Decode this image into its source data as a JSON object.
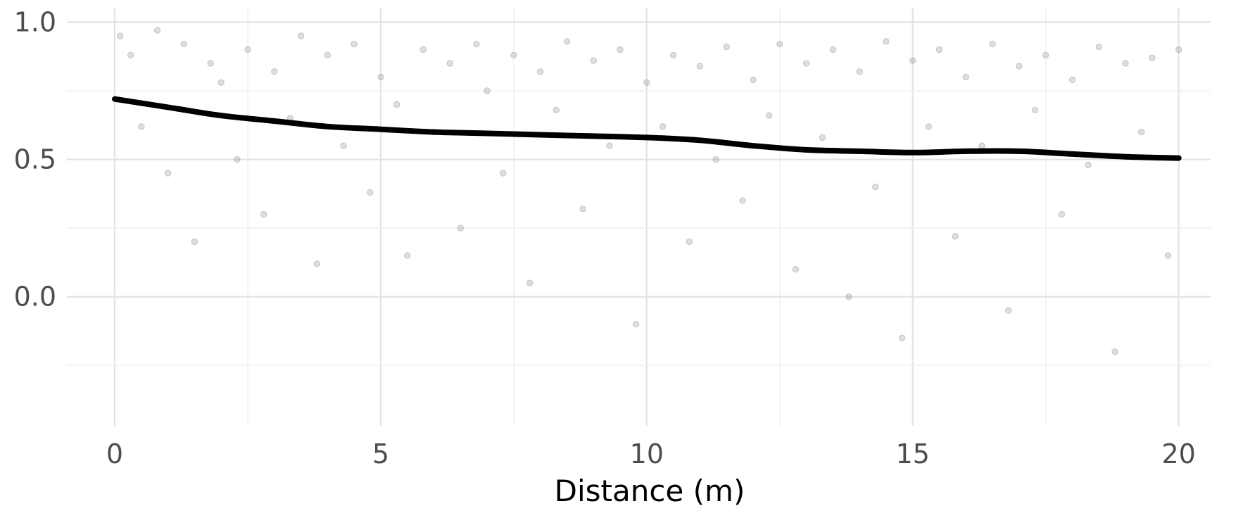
{
  "chart_data": {
    "type": "scatter",
    "title": "",
    "xlabel": "Distance (m)",
    "ylabel": "",
    "xlim": [
      -0.9,
      20.6
    ],
    "ylim": [
      -0.47,
      1.05
    ],
    "x_ticks": [
      0,
      5,
      10,
      15,
      20
    ],
    "x_tick_labels": [
      "0",
      "5",
      "10",
      "15",
      "20"
    ],
    "y_ticks": [
      0.0,
      0.5,
      1.0
    ],
    "y_tick_labels": [
      "0.0",
      "0.5",
      "1.0"
    ],
    "grid": true,
    "legend": "none",
    "point_color": "#7f7f7f",
    "line_color": "#000000",
    "series": [
      {
        "kind": "points",
        "x": [
          0.1,
          0.3,
          0.5,
          0.8,
          1.0,
          1.3,
          1.5,
          1.8,
          2.0,
          2.3,
          2.5,
          2.8,
          3.0,
          3.3,
          3.5,
          3.8,
          4.0,
          4.3,
          4.5,
          4.8,
          5.0,
          5.3,
          5.5,
          5.8,
          6.0,
          6.3,
          6.5,
          6.8,
          7.0,
          7.3,
          7.5,
          7.8,
          8.0,
          8.3,
          8.5,
          8.8,
          9.0,
          9.3,
          9.5,
          9.8,
          10.0,
          10.3,
          10.5,
          10.8,
          11.0,
          11.3,
          11.5,
          11.8,
          12.0,
          12.3,
          12.5,
          12.8,
          13.0,
          13.3,
          13.5,
          13.8,
          14.0,
          14.3,
          14.5,
          14.8,
          15.0,
          15.3,
          15.5,
          15.8,
          16.0,
          16.3,
          16.5,
          16.8,
          17.0,
          17.3,
          17.5,
          17.8,
          18.0,
          18.3,
          18.5,
          18.8,
          19.0,
          19.3,
          19.5,
          19.8,
          20.0
        ],
        "y": [
          0.95,
          0.88,
          0.62,
          0.97,
          0.45,
          0.92,
          0.2,
          0.85,
          0.78,
          0.5,
          0.9,
          0.3,
          0.82,
          0.65,
          0.95,
          0.12,
          0.88,
          0.55,
          0.92,
          0.38,
          0.8,
          0.7,
          0.15,
          0.9,
          0.6,
          0.85,
          0.25,
          0.92,
          0.75,
          0.45,
          0.88,
          0.05,
          0.82,
          0.68,
          0.93,
          0.32,
          0.86,
          0.55,
          0.9,
          -0.1,
          0.78,
          0.62,
          0.88,
          0.2,
          0.84,
          0.5,
          0.91,
          0.35,
          0.79,
          0.66,
          0.92,
          0.1,
          0.85,
          0.58,
          0.9,
          0.0,
          0.82,
          0.4,
          0.93,
          -0.15,
          0.86,
          0.62,
          0.9,
          0.22,
          0.8,
          0.55,
          0.92,
          -0.05,
          0.84,
          0.68,
          0.88,
          0.3,
          0.79,
          0.48,
          0.91,
          -0.2,
          0.85,
          0.6,
          0.87,
          0.15,
          0.9
        ]
      },
      {
        "kind": "smooth",
        "x": [
          0,
          1,
          2,
          3,
          4,
          5,
          6,
          7,
          8,
          9,
          10,
          11,
          12,
          13,
          14,
          15,
          16,
          17,
          18,
          19,
          20
        ],
        "y": [
          0.72,
          0.69,
          0.66,
          0.64,
          0.62,
          0.61,
          0.6,
          0.595,
          0.59,
          0.585,
          0.58,
          0.57,
          0.55,
          0.535,
          0.53,
          0.525,
          0.53,
          0.53,
          0.52,
          0.51,
          0.505
        ]
      }
    ]
  }
}
